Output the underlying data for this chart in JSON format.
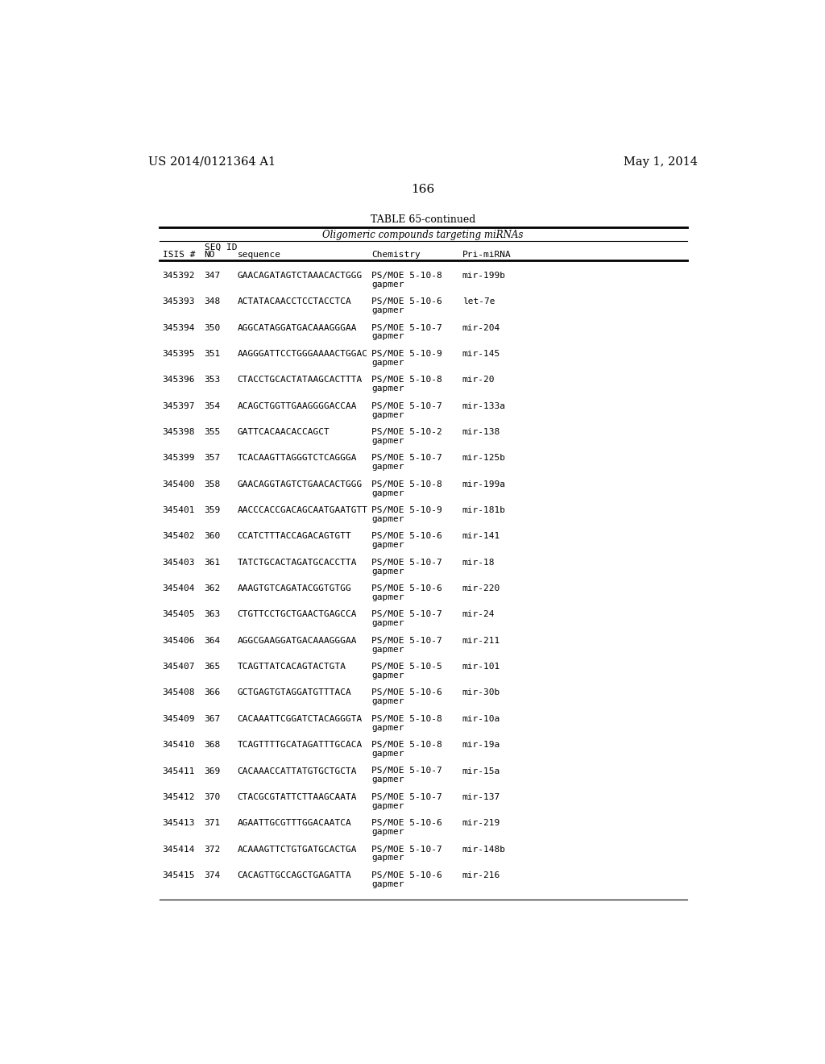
{
  "page_number": "166",
  "patent_number": "US 2014/0121364 A1",
  "patent_date": "May 1, 2014",
  "table_title": "TABLE 65-continued",
  "table_subtitle": "Oligomeric compounds targeting miRNAs",
  "rows": [
    [
      "345392",
      "347",
      "GAACAGATAGTCTAAACACTGGG",
      "PS/MOE 5-10-8",
      "gapmer",
      "mir-199b"
    ],
    [
      "345393",
      "348",
      "ACTATACAACCTCCTACCTCA",
      "PS/MOE 5-10-6",
      "gapmer",
      "let-7e"
    ],
    [
      "345394",
      "350",
      "AGGCATAGGATGACAAAGGGAA",
      "PS/MOE 5-10-7",
      "gapmer",
      "mir-204"
    ],
    [
      "345395",
      "351",
      "AAGGGATTCCTGGGAAAACTGGAC",
      "PS/MOE 5-10-9",
      "gapmer",
      "mir-145"
    ],
    [
      "345396",
      "353",
      "CTACCTGCACTATAAGCACTTTA",
      "PS/MOE 5-10-8",
      "gapmer",
      "mir-20"
    ],
    [
      "345397",
      "354",
      "ACAGCTGGTTGAAGGGGACCAA",
      "PS/MOE 5-10-7",
      "gapmer",
      "mir-133a"
    ],
    [
      "345398",
      "355",
      "GATTCACAACACCAGCT",
      "PS/MOE 5-10-2",
      "gapmer",
      "mir-138"
    ],
    [
      "345399",
      "357",
      "TCACAAGTTAGGGTCTCAGGGA",
      "PS/MOE 5-10-7",
      "gapmer",
      "mir-125b"
    ],
    [
      "345400",
      "358",
      "GAACAGGTAGTCTGAACACTGGG",
      "PS/MOE 5-10-8",
      "gapmer",
      "mir-199a"
    ],
    [
      "345401",
      "359",
      "AACCCACCGACAGCAATGAATGTT",
      "PS/MOE 5-10-9",
      "gapmer",
      "mir-181b"
    ],
    [
      "345402",
      "360",
      "CCATCTTTACCAGACAGTGTT",
      "PS/MOE 5-10-6",
      "gapmer",
      "mir-141"
    ],
    [
      "345403",
      "361",
      "TATCTGCACTAGATGCACCTTA",
      "PS/MOE 5-10-7",
      "gapmer",
      "mir-18"
    ],
    [
      "345404",
      "362",
      "AAAGTGTCAGATACGGTGTGG",
      "PS/MOE 5-10-6",
      "gapmer",
      "mir-220"
    ],
    [
      "345405",
      "363",
      "CTGTTCCTGCTGAACTGAGCCA",
      "PS/MOE 5-10-7",
      "gapmer",
      "mir-24"
    ],
    [
      "345406",
      "364",
      "AGGCGAAGGATGACAAAGGGAA",
      "PS/MOE 5-10-7",
      "gapmer",
      "mir-211"
    ],
    [
      "345407",
      "365",
      "TCAGTTATCACAGTACTGTA",
      "PS/MOE 5-10-5",
      "gapmer",
      "mir-101"
    ],
    [
      "345408",
      "366",
      "GCTGAGTGTAGGATGTTTACA",
      "PS/MOE 5-10-6",
      "gapmer",
      "mir-30b"
    ],
    [
      "345409",
      "367",
      "CACAAATTCGGATCTACAGGGTA",
      "PS/MOE 5-10-8",
      "gapmer",
      "mir-10a"
    ],
    [
      "345410",
      "368",
      "TCAGTTTTGCATAGATTTGCACA",
      "PS/MOE 5-10-8",
      "gapmer",
      "mir-19a"
    ],
    [
      "345411",
      "369",
      "CACAAACCATTATGTGCTGCTA",
      "PS/MOE 5-10-7",
      "gapmer",
      "mir-15a"
    ],
    [
      "345412",
      "370",
      "CTACGCGTATTCTTAAGCAATA",
      "PS/MOE 5-10-7",
      "gapmer",
      "mir-137"
    ],
    [
      "345413",
      "371",
      "AGAATTGCGTTTGGACAATCA",
      "PS/MOE 5-10-6",
      "gapmer",
      "mir-219"
    ],
    [
      "345414",
      "372",
      "ACAAAGTTCTGTGATGCACTGA",
      "PS/MOE 5-10-7",
      "gapmer",
      "mir-148b"
    ],
    [
      "345415",
      "374",
      "CACAGTTGCCAGCTGAGATTA",
      "PS/MOE 5-10-6",
      "gapmer",
      "mir-216"
    ]
  ],
  "background_color": "#ffffff",
  "text_color": "#000000"
}
